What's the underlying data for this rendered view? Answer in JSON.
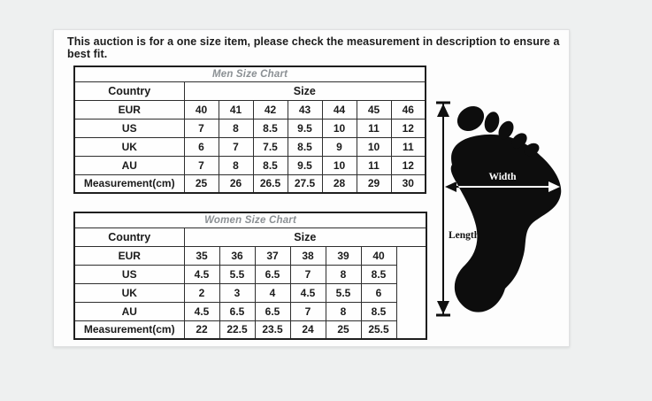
{
  "notice": "This auction is for a one size item, please check the measurement in description to ensure a best fit.",
  "men_chart": {
    "title": "Men Size Chart",
    "country_header": "Country",
    "size_header": "Size",
    "rows": [
      {
        "label": "EUR",
        "values": [
          "40",
          "41",
          "42",
          "43",
          "44",
          "45",
          "46"
        ]
      },
      {
        "label": "US",
        "values": [
          "7",
          "8",
          "8.5",
          "9.5",
          "10",
          "11",
          "12"
        ]
      },
      {
        "label": "UK",
        "values": [
          "6",
          "7",
          "7.5",
          "8.5",
          "9",
          "10",
          "11"
        ]
      },
      {
        "label": "AU",
        "values": [
          "7",
          "8",
          "8.5",
          "9.5",
          "10",
          "11",
          "12"
        ]
      },
      {
        "label": "Measurement(cm)",
        "values": [
          "25",
          "26",
          "26.5",
          "27.5",
          "28",
          "29",
          "30"
        ]
      }
    ]
  },
  "women_chart": {
    "title": "Women Size Chart",
    "country_header": "Country",
    "size_header": "Size",
    "rows": [
      {
        "label": "EUR",
        "values": [
          "35",
          "36",
          "37",
          "38",
          "39",
          "40"
        ]
      },
      {
        "label": "US",
        "values": [
          "4.5",
          "5.5",
          "6.5",
          "7",
          "8",
          "8.5"
        ]
      },
      {
        "label": "UK",
        "values": [
          "2",
          "3",
          "4",
          "4.5",
          "5.5",
          "6"
        ]
      },
      {
        "label": "AU",
        "values": [
          "4.5",
          "6.5",
          "6.5",
          "7",
          "8",
          "8.5"
        ]
      },
      {
        "label": "Measurement(cm)",
        "values": [
          "22",
          "22.5",
          "23.5",
          "24",
          "25",
          "25.5"
        ]
      }
    ]
  },
  "diagram": {
    "width_label": "Width",
    "length_label": "Length"
  },
  "colors": {
    "page_background": "#eef0f0",
    "panel_background": "#fdfdfd",
    "table_border": "#1f1f1f",
    "chart_title_gray": "#8b9094",
    "text": "#1b1b1b",
    "foot_silhouette": "#0d0d0d"
  }
}
